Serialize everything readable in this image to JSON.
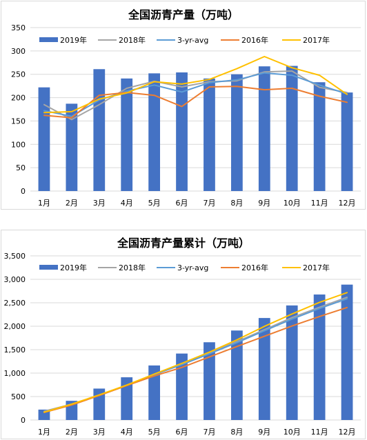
{
  "chart_data": [
    {
      "type": "bar",
      "title": "全国沥青产量（万吨）",
      "categories": [
        "1月",
        "2月",
        "3月",
        "4月",
        "5月",
        "6月",
        "7月",
        "8月",
        "9月",
        "10月",
        "11月",
        "12月"
      ],
      "ylim": [
        0,
        350
      ],
      "yticks": [
        "0",
        "50",
        "100",
        "150",
        "200",
        "250",
        "300",
        "350"
      ],
      "grid": true,
      "legend_position": "top",
      "series": [
        {
          "name": "2019年",
          "kind": "bar",
          "color": "#4472C4",
          "values": [
            222,
            187,
            261,
            241,
            252,
            254,
            241,
            250,
            267,
            268,
            233,
            211
          ]
        },
        {
          "name": "2018年",
          "kind": "line",
          "color": "#A5A5A5",
          "values": [
            185,
            153,
            185,
            220,
            235,
            223,
            234,
            236,
            255,
            257,
            222,
            211
          ]
        },
        {
          "name": "3-yr-avg",
          "kind": "line",
          "color": "#5B9BD5",
          "values": [
            172,
            160,
            195,
            214,
            227,
            212,
            232,
            238,
            253,
            248,
            227,
            208
          ]
        },
        {
          "name": "2016年",
          "kind": "line",
          "color": "#ED7D31",
          "values": [
            162,
            157,
            205,
            211,
            205,
            181,
            223,
            224,
            217,
            220,
            203,
            190
          ]
        },
        {
          "name": "2017年",
          "kind": "line",
          "color": "#FFC000",
          "values": [
            168,
            170,
            197,
            210,
            234,
            229,
            239,
            262,
            288,
            264,
            248,
            207
          ]
        }
      ]
    },
    {
      "type": "bar",
      "title": "全国沥青产量累计（万吨）",
      "categories": [
        "1月",
        "2月",
        "3月",
        "4月",
        "5月",
        "6月",
        "7月",
        "8月",
        "9月",
        "10月",
        "11月",
        "12月"
      ],
      "ylim": [
        0,
        3500
      ],
      "yticks": [
        "0",
        "500",
        "1,000",
        "1,500",
        "2,000",
        "2,500",
        "3,000",
        "3,500"
      ],
      "grid": true,
      "legend_position": "top",
      "series": [
        {
          "name": "2019年",
          "kind": "bar",
          "color": "#4472C4",
          "values": [
            222,
            409,
            670,
            911,
            1163,
            1417,
            1658,
            1908,
            2175,
            2443,
            2676,
            2887
          ]
        },
        {
          "name": "2018年",
          "kind": "line",
          "color": "#A5A5A5",
          "values": [
            185,
            338,
            523,
            743,
            978,
            1201,
            1435,
            1671,
            1926,
            2183,
            2405,
            2616
          ]
        },
        {
          "name": "3-yr-avg",
          "kind": "line",
          "color": "#5B9BD5",
          "values": [
            172,
            332,
            527,
            741,
            968,
            1180,
            1412,
            1650,
            1903,
            2151,
            2378,
            2586
          ]
        },
        {
          "name": "2016年",
          "kind": "line",
          "color": "#ED7D31",
          "values": [
            162,
            319,
            524,
            735,
            940,
            1121,
            1344,
            1568,
            1785,
            2005,
            2208,
            2398
          ]
        },
        {
          "name": "2017年",
          "kind": "line",
          "color": "#FFC000",
          "values": [
            168,
            338,
            535,
            745,
            979,
            1208,
            1447,
            1709,
            1997,
            2261,
            2509,
            2716
          ]
        }
      ]
    }
  ]
}
